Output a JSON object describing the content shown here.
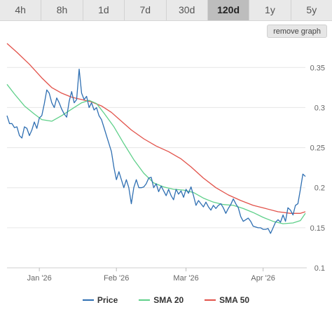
{
  "tabs": [
    {
      "label": "4h",
      "active": false
    },
    {
      "label": "8h",
      "active": false
    },
    {
      "label": "1d",
      "active": false
    },
    {
      "label": "7d",
      "active": false
    },
    {
      "label": "30d",
      "active": false
    },
    {
      "label": "120d",
      "active": true
    },
    {
      "label": "1y",
      "active": false
    },
    {
      "label": "5y",
      "active": false
    }
  ],
  "remove_button": "remove graph",
  "colors": {
    "price": "#2f6fb2",
    "sma20": "#5fd08a",
    "sma50": "#e2524a"
  },
  "chart_data": {
    "type": "line",
    "title": "",
    "xlabel": "",
    "ylabel": "",
    "ylim": [
      0.1,
      0.38
    ],
    "yticks": [
      0.1,
      0.15,
      0.2,
      0.25,
      0.3,
      0.35
    ],
    "ytick_labels": [
      "0.1",
      "0.15",
      "0.2",
      "0.25",
      "0.3",
      "0.35"
    ],
    "xlim": [
      "2025-12-19",
      "2026-04-18"
    ],
    "xticks": [
      "2026-01-01",
      "2026-02-01",
      "2026-03-01",
      "2026-04-01"
    ],
    "xtick_labels": [
      "Jan '26",
      "Feb '26",
      "Mar '26",
      "Apr '26"
    ],
    "grid": true,
    "legend_position": "bottom",
    "series": [
      {
        "name": "Price",
        "color": "#2f6fb2",
        "points": [
          [
            "2025-12-19",
            0.29
          ],
          [
            "2025-12-20",
            0.28
          ],
          [
            "2025-12-21",
            0.28
          ],
          [
            "2025-12-22",
            0.275
          ],
          [
            "2025-12-23",
            0.276
          ],
          [
            "2025-12-24",
            0.265
          ],
          [
            "2025-12-25",
            0.262
          ],
          [
            "2025-12-26",
            0.276
          ],
          [
            "2025-12-27",
            0.274
          ],
          [
            "2025-12-28",
            0.265
          ],
          [
            "2025-12-29",
            0.272
          ],
          [
            "2025-12-30",
            0.282
          ],
          [
            "2025-12-31",
            0.274
          ],
          [
            "2026-01-01",
            0.287
          ],
          [
            "2026-01-02",
            0.29
          ],
          [
            "2026-01-03",
            0.305
          ],
          [
            "2026-01-04",
            0.322
          ],
          [
            "2026-01-05",
            0.318
          ],
          [
            "2026-01-06",
            0.306
          ],
          [
            "2026-01-07",
            0.3
          ],
          [
            "2026-01-08",
            0.312
          ],
          [
            "2026-01-09",
            0.306
          ],
          [
            "2026-01-10",
            0.298
          ],
          [
            "2026-01-11",
            0.292
          ],
          [
            "2026-01-12",
            0.288
          ],
          [
            "2026-01-13",
            0.308
          ],
          [
            "2026-01-14",
            0.32
          ],
          [
            "2026-01-15",
            0.306
          ],
          [
            "2026-01-16",
            0.31
          ],
          [
            "2026-01-17",
            0.348
          ],
          [
            "2026-01-18",
            0.318
          ],
          [
            "2026-01-19",
            0.31
          ],
          [
            "2026-01-20",
            0.314
          ],
          [
            "2026-01-21",
            0.3
          ],
          [
            "2026-01-22",
            0.306
          ],
          [
            "2026-01-23",
            0.297
          ],
          [
            "2026-01-24",
            0.3
          ],
          [
            "2026-01-25",
            0.29
          ],
          [
            "2026-01-26",
            0.285
          ],
          [
            "2026-01-27",
            0.275
          ],
          [
            "2026-01-28",
            0.265
          ],
          [
            "2026-01-29",
            0.255
          ],
          [
            "2026-01-30",
            0.245
          ],
          [
            "2026-01-31",
            0.225
          ],
          [
            "2026-02-01",
            0.21
          ],
          [
            "2026-02-02",
            0.22
          ],
          [
            "2026-02-03",
            0.21
          ],
          [
            "2026-02-04",
            0.2
          ],
          [
            "2026-02-05",
            0.21
          ],
          [
            "2026-02-06",
            0.2
          ],
          [
            "2026-02-07",
            0.18
          ],
          [
            "2026-02-08",
            0.2
          ],
          [
            "2026-02-09",
            0.21
          ],
          [
            "2026-02-10",
            0.2
          ],
          [
            "2026-02-11",
            0.2
          ],
          [
            "2026-02-12",
            0.201
          ],
          [
            "2026-02-13",
            0.205
          ],
          [
            "2026-02-14",
            0.212
          ],
          [
            "2026-02-15",
            0.213
          ],
          [
            "2026-02-16",
            0.2
          ],
          [
            "2026-02-17",
            0.205
          ],
          [
            "2026-02-18",
            0.195
          ],
          [
            "2026-02-19",
            0.202
          ],
          [
            "2026-02-20",
            0.196
          ],
          [
            "2026-02-21",
            0.19
          ],
          [
            "2026-02-22",
            0.198
          ],
          [
            "2026-02-23",
            0.19
          ],
          [
            "2026-02-24",
            0.185
          ],
          [
            "2026-02-25",
            0.198
          ],
          [
            "2026-02-26",
            0.192
          ],
          [
            "2026-02-27",
            0.196
          ],
          [
            "2026-02-28",
            0.188
          ],
          [
            "2026-03-01",
            0.198
          ],
          [
            "2026-03-02",
            0.193
          ],
          [
            "2026-03-03",
            0.201
          ],
          [
            "2026-03-04",
            0.19
          ],
          [
            "2026-03-05",
            0.178
          ],
          [
            "2026-03-06",
            0.184
          ],
          [
            "2026-03-07",
            0.18
          ],
          [
            "2026-03-08",
            0.176
          ],
          [
            "2026-03-09",
            0.182
          ],
          [
            "2026-03-10",
            0.176
          ],
          [
            "2026-03-11",
            0.172
          ],
          [
            "2026-03-12",
            0.178
          ],
          [
            "2026-03-13",
            0.174
          ],
          [
            "2026-03-14",
            0.178
          ],
          [
            "2026-03-15",
            0.18
          ],
          [
            "2026-03-16",
            0.175
          ],
          [
            "2026-03-17",
            0.168
          ],
          [
            "2026-03-18",
            0.174
          ],
          [
            "2026-03-19",
            0.179
          ],
          [
            "2026-03-20",
            0.186
          ],
          [
            "2026-03-21",
            0.18
          ],
          [
            "2026-03-22",
            0.175
          ],
          [
            "2026-03-23",
            0.164
          ],
          [
            "2026-03-24",
            0.158
          ],
          [
            "2026-03-25",
            0.16
          ],
          [
            "2026-03-26",
            0.162
          ],
          [
            "2026-03-27",
            0.158
          ],
          [
            "2026-03-28",
            0.152
          ],
          [
            "2026-03-29",
            0.151
          ],
          [
            "2026-03-30",
            0.15
          ],
          [
            "2026-03-31",
            0.15
          ],
          [
            "2026-04-01",
            0.148
          ],
          [
            "2026-04-02",
            0.148
          ],
          [
            "2026-04-03",
            0.149
          ],
          [
            "2026-04-04",
            0.143
          ],
          [
            "2026-04-05",
            0.15
          ],
          [
            "2026-04-06",
            0.157
          ],
          [
            "2026-04-07",
            0.16
          ],
          [
            "2026-04-08",
            0.157
          ],
          [
            "2026-04-09",
            0.166
          ],
          [
            "2026-04-10",
            0.158
          ],
          [
            "2026-04-11",
            0.175
          ],
          [
            "2026-04-12",
            0.172
          ],
          [
            "2026-04-13",
            0.166
          ],
          [
            "2026-04-14",
            0.178
          ],
          [
            "2026-04-15",
            0.18
          ],
          [
            "2026-04-16",
            0.198
          ],
          [
            "2026-04-17",
            0.217
          ],
          [
            "2026-04-18",
            0.214
          ]
        ]
      },
      {
        "name": "SMA 20",
        "color": "#5fd08a",
        "points": [
          [
            "2025-12-19",
            0.329
          ],
          [
            "2025-12-22",
            0.317
          ],
          [
            "2025-12-26",
            0.302
          ],
          [
            "2025-12-30",
            0.292
          ],
          [
            "2026-01-02",
            0.285
          ],
          [
            "2026-01-06",
            0.283
          ],
          [
            "2026-01-10",
            0.29
          ],
          [
            "2026-01-14",
            0.298
          ],
          [
            "2026-01-18",
            0.306
          ],
          [
            "2026-01-21",
            0.309
          ],
          [
            "2026-01-24",
            0.305
          ],
          [
            "2026-01-27",
            0.293
          ],
          [
            "2026-01-31",
            0.276
          ],
          [
            "2026-02-04",
            0.255
          ],
          [
            "2026-02-08",
            0.235
          ],
          [
            "2026-02-12",
            0.218
          ],
          [
            "2026-02-16",
            0.206
          ],
          [
            "2026-02-20",
            0.201
          ],
          [
            "2026-02-24",
            0.198
          ],
          [
            "2026-02-28",
            0.197
          ],
          [
            "2026-03-04",
            0.194
          ],
          [
            "2026-03-08",
            0.187
          ],
          [
            "2026-03-12",
            0.182
          ],
          [
            "2026-03-16",
            0.179
          ],
          [
            "2026-03-20",
            0.178
          ],
          [
            "2026-03-24",
            0.174
          ],
          [
            "2026-03-28",
            0.169
          ],
          [
            "2026-04-01",
            0.163
          ],
          [
            "2026-04-05",
            0.158
          ],
          [
            "2026-04-09",
            0.155
          ],
          [
            "2026-04-13",
            0.156
          ],
          [
            "2026-04-16",
            0.159
          ],
          [
            "2026-04-18",
            0.168
          ]
        ]
      },
      {
        "name": "SMA 50",
        "color": "#e2524a",
        "points": [
          [
            "2025-12-19",
            0.38
          ],
          [
            "2025-12-23",
            0.369
          ],
          [
            "2025-12-28",
            0.354
          ],
          [
            "2026-01-02",
            0.337
          ],
          [
            "2026-01-06",
            0.325
          ],
          [
            "2026-01-10",
            0.318
          ],
          [
            "2026-01-14",
            0.313
          ],
          [
            "2026-01-18",
            0.31
          ],
          [
            "2026-01-22",
            0.307
          ],
          [
            "2026-01-26",
            0.302
          ],
          [
            "2026-01-30",
            0.294
          ],
          [
            "2026-02-03",
            0.283
          ],
          [
            "2026-02-07",
            0.272
          ],
          [
            "2026-02-12",
            0.261
          ],
          [
            "2026-02-17",
            0.252
          ],
          [
            "2026-02-22",
            0.245
          ],
          [
            "2026-02-27",
            0.236
          ],
          [
            "2026-03-03",
            0.226
          ],
          [
            "2026-03-08",
            0.212
          ],
          [
            "2026-03-13",
            0.2
          ],
          [
            "2026-03-18",
            0.191
          ],
          [
            "2026-03-23",
            0.184
          ],
          [
            "2026-03-28",
            0.178
          ],
          [
            "2026-04-02",
            0.174
          ],
          [
            "2026-04-07",
            0.17
          ],
          [
            "2026-04-12",
            0.168
          ],
          [
            "2026-04-16",
            0.168
          ],
          [
            "2026-04-18",
            0.17
          ]
        ]
      }
    ]
  }
}
